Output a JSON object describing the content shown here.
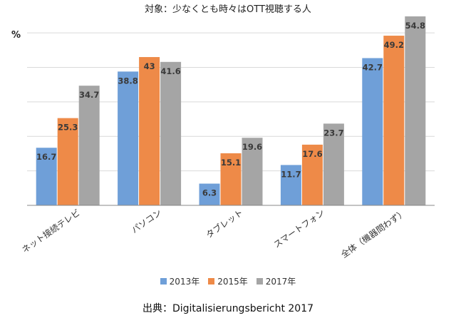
{
  "chart_data": {
    "type": "bar",
    "title": "対象：少なくとも時々はOTT視聴する人",
    "ylabel": "%",
    "source": "出典：Digitalisierungsbericht 2017",
    "categories": [
      "ネット接続テレビ",
      "パソコン",
      "タブレット",
      "スマートフォン",
      "全体（機器問わず）"
    ],
    "series": [
      {
        "name": "2013年",
        "color": "#6f9fd8",
        "values": [
          16.7,
          38.8,
          6.3,
          11.7,
          42.7
        ]
      },
      {
        "name": "2015年",
        "color": "#ee8a48",
        "values": [
          25.3,
          43,
          15.1,
          17.6,
          49.2
        ]
      },
      {
        "name": "2017年",
        "color": "#a5a5a5",
        "values": [
          34.7,
          41.6,
          19.6,
          23.7,
          54.8
        ]
      }
    ],
    "ylim": [
      0,
      55
    ],
    "grid": true,
    "legend_position": "bottom"
  }
}
